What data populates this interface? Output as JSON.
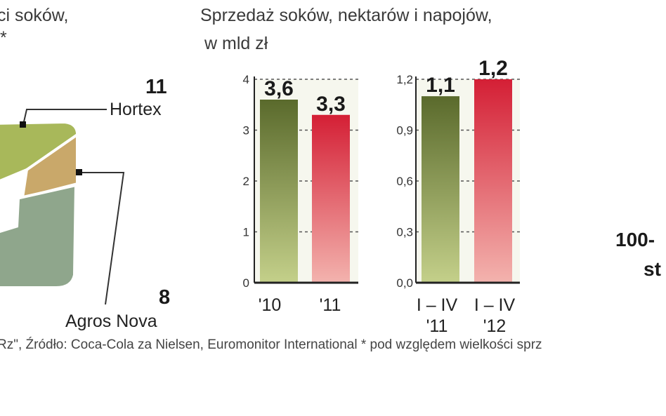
{
  "left_panel": {
    "title_line1": "ci soków,",
    "title_line2": "*",
    "hortex_value": "11",
    "hortex_label": "Hortex",
    "agros_value": "8",
    "agros_label": "Agros Nova",
    "colors": {
      "hortex": "#a8b85a",
      "agros": "#c9a86a",
      "other": "#8fa68c"
    }
  },
  "right_panel": {
    "line1": "100-",
    "line2": "st"
  },
  "chart_title_line1": "Sprzedaż soków, nektarów i napojów,",
  "chart_title_line2": "w mld zł",
  "footer": "Rz\", Źródło: Coca-Cola za Nielsen, Euromonitor International  * pod względem wielkości sprz",
  "chart_data": [
    {
      "type": "bar",
      "categories": [
        "'10",
        "'11"
      ],
      "values": [
        3.6,
        3.3
      ],
      "value_labels": [
        "3,6",
        "3,3"
      ],
      "yticks": [
        "0",
        "1",
        "2",
        "3",
        "4"
      ],
      "ylim": [
        0,
        4
      ],
      "bar_colors": [
        "#5b6a2e",
        "#d8283c"
      ]
    },
    {
      "type": "bar",
      "categories": [
        "I – IV '11",
        "I – IV '12"
      ],
      "category_lines": [
        [
          "I – IV",
          "'11"
        ],
        [
          "I – IV",
          "'12"
        ]
      ],
      "values": [
        1.1,
        1.2
      ],
      "value_labels": [
        "1,1",
        "1,2"
      ],
      "yticks": [
        "0,0",
        "0,3",
        "0,6",
        "0,9",
        "1,2"
      ],
      "ylim": [
        0,
        1.2
      ],
      "bar_colors": [
        "#5b6a2e",
        "#d8283c"
      ]
    }
  ]
}
